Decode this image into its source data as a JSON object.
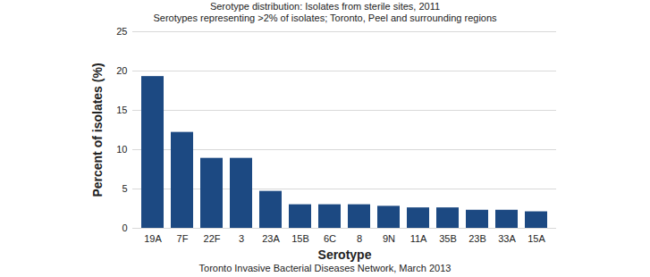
{
  "chart_data": {
    "type": "bar",
    "title": "Serotype distribution: Isolates from sterile sites, 2011",
    "subtitle": "Serotypes representing >2% of isolates; Toronto, Peel and surrounding regions",
    "caption": "Toronto Invasive Bacterial Diseases Network, March 2013",
    "x_label": "Serotype",
    "y_label": "Percent of isolates (%)",
    "categories": [
      "19A",
      "7F",
      "22F",
      "3",
      "23A",
      "15B",
      "6C",
      "8",
      "9N",
      "11A",
      "35B",
      "23B",
      "33A",
      "15A"
    ],
    "values": [
      19.3,
      12.2,
      8.9,
      8.9,
      4.7,
      3.0,
      3.0,
      3.0,
      2.8,
      2.6,
      2.6,
      2.3,
      2.3,
      2.1
    ],
    "color": "#1c4982",
    "ylim": [
      0,
      25
    ],
    "yticks": [
      0,
      5,
      10,
      15,
      20,
      25
    ],
    "grid": true
  }
}
